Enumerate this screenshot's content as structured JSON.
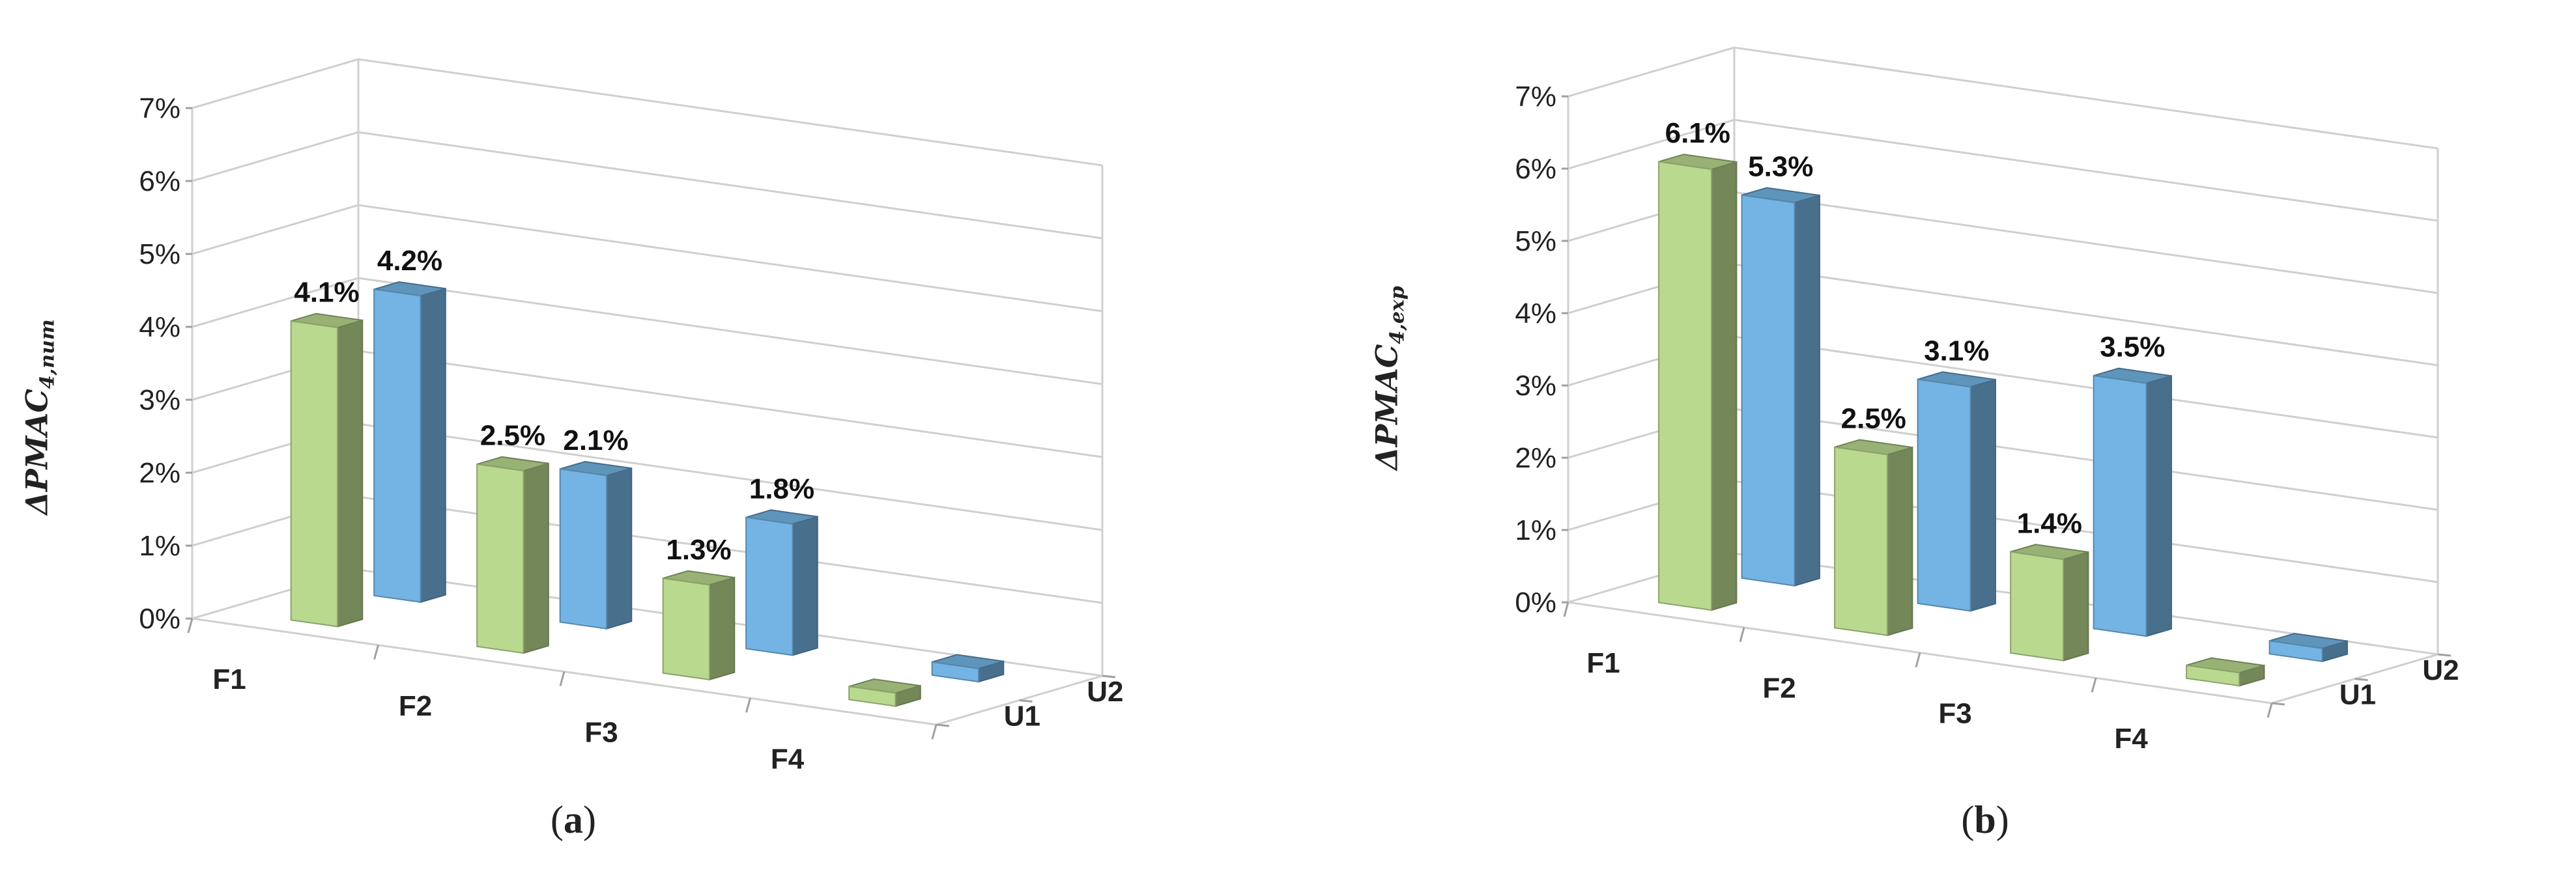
{
  "chart_data": [
    {
      "type": "bar",
      "panel_label": "a",
      "ylabel_main": "ΔPMAC",
      "ylabel_sub": "4,num",
      "y_ticks": [
        "0%",
        "1%",
        "2%",
        "3%",
        "4%",
        "5%",
        "6%",
        "7%"
      ],
      "ylim": [
        0,
        7
      ],
      "categories": [
        "F1",
        "F2",
        "F3",
        "F4"
      ],
      "depth_labels": [
        "U1",
        "U2"
      ],
      "series": [
        {
          "name": "U1",
          "color": "#b9d98f",
          "values": [
            4.1,
            2.5,
            1.3,
            0
          ],
          "labels": [
            "4.1%",
            "2.5%",
            "1.3%",
            ""
          ]
        },
        {
          "name": "U2",
          "color": "#74b4e4",
          "values": [
            4.2,
            2.1,
            1.8,
            0
          ],
          "labels": [
            "4.2%",
            "2.1%",
            "1.8%",
            ""
          ]
        }
      ]
    },
    {
      "type": "bar",
      "panel_label": "b",
      "ylabel_main": "ΔPMAC",
      "ylabel_sub": "4,exp",
      "y_ticks": [
        "0%",
        "1%",
        "2%",
        "3%",
        "4%",
        "5%",
        "6%",
        "7%"
      ],
      "ylim": [
        0,
        7
      ],
      "categories": [
        "F1",
        "F2",
        "F3",
        "F4"
      ],
      "depth_labels": [
        "U1",
        "U2"
      ],
      "series": [
        {
          "name": "U1",
          "color": "#b9d98f",
          "values": [
            6.1,
            2.5,
            1.4,
            0
          ],
          "labels": [
            "6.1%",
            "2.5%",
            "1.4%",
            ""
          ]
        },
        {
          "name": "U2",
          "color": "#74b4e4",
          "values": [
            5.3,
            3.1,
            3.5,
            0
          ],
          "labels": [
            "5.3%",
            "3.1%",
            "3.5%",
            ""
          ]
        }
      ]
    }
  ]
}
